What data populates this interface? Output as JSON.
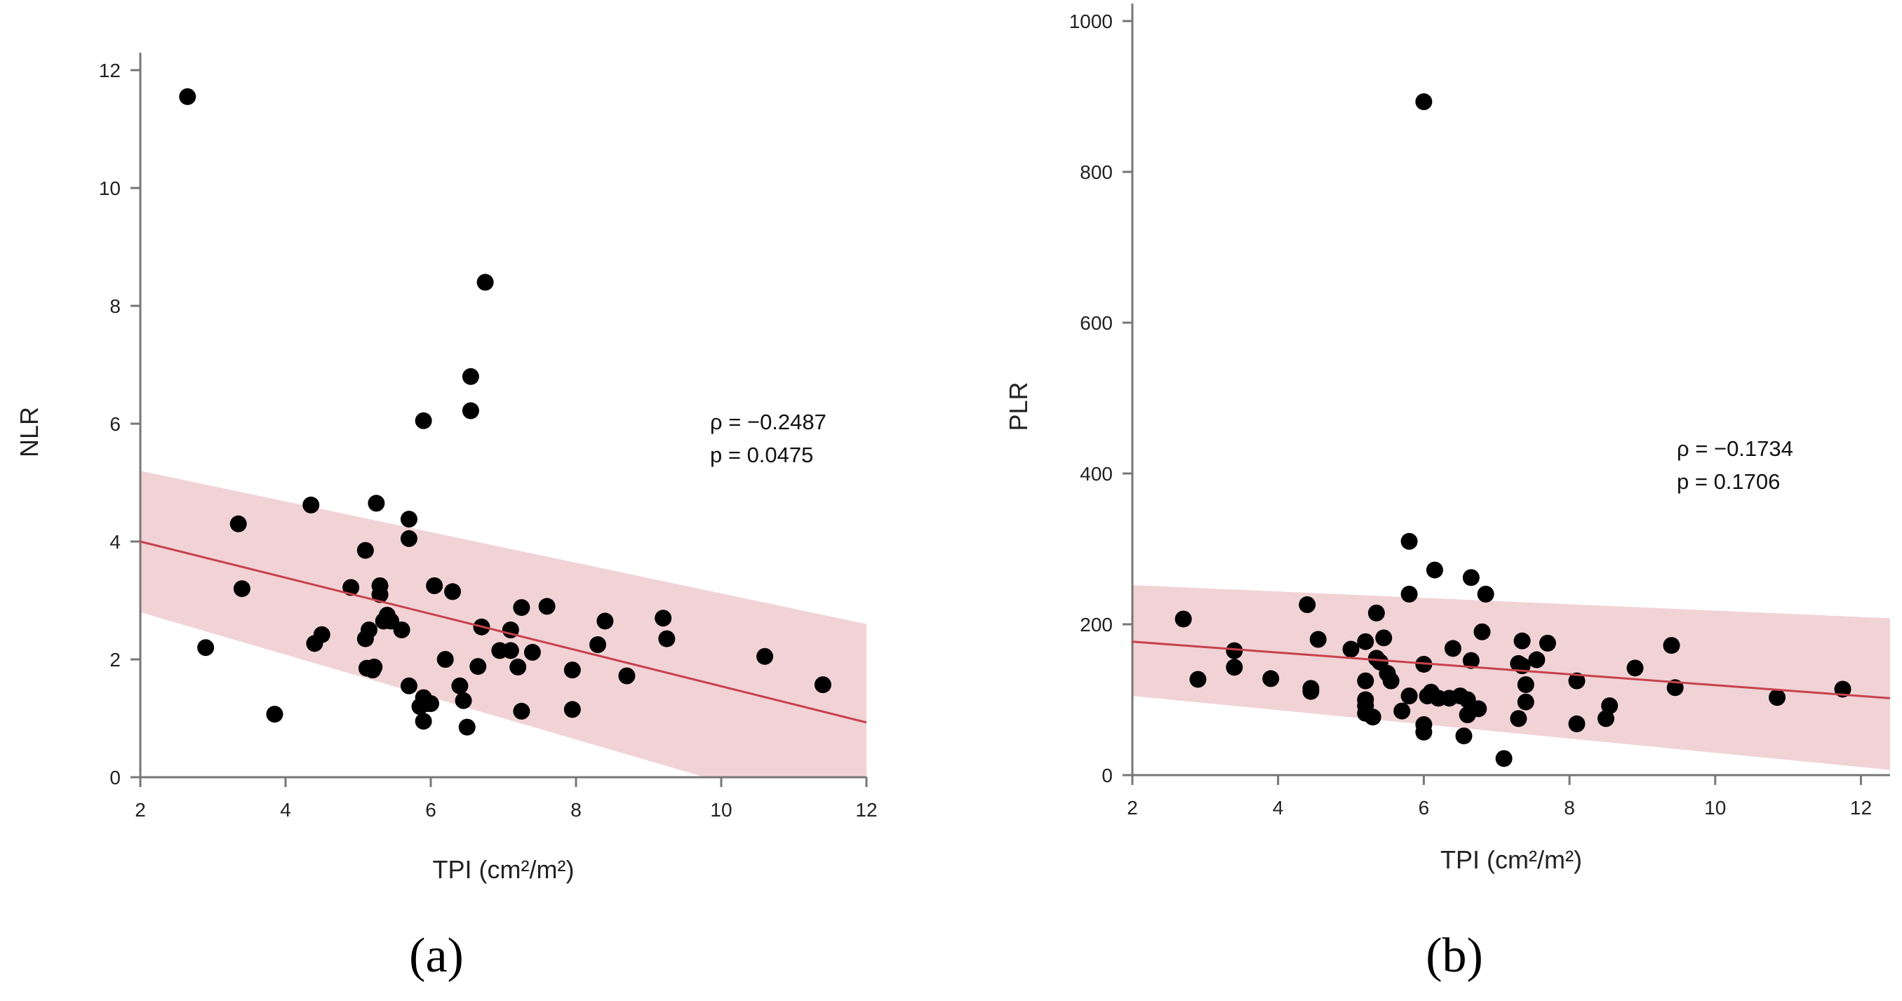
{
  "chart_data": [
    {
      "type": "scatter",
      "panel_label": "(a)",
      "xlabel": "TPI (cm²/m²)",
      "ylabel": "NLR",
      "xlim": [
        2,
        12
      ],
      "ylim": [
        0,
        12
      ],
      "xticks": [
        2,
        4,
        6,
        8,
        10,
        12
      ],
      "yticks": [
        0,
        2,
        4,
        6,
        8,
        10,
        12
      ],
      "annotation": [
        "ρ = −0.2487",
        "p = 0.0475"
      ],
      "annotation_position": "right-middle",
      "fit_line": {
        "x": [
          2,
          12
        ],
        "y": [
          4.0,
          0.93
        ]
      },
      "ci_band": {
        "x": [
          2,
          12
        ],
        "upper": [
          5.2,
          2.6
        ],
        "lower": [
          2.8,
          -0.8
        ]
      },
      "colors": {
        "points": "#000000",
        "fit": "#c7424b",
        "band": "#f1d3d6"
      },
      "points": [
        [
          2.65,
          11.55
        ],
        [
          2.9,
          2.2
        ],
        [
          3.35,
          4.3
        ],
        [
          3.4,
          3.2
        ],
        [
          3.85,
          1.07
        ],
        [
          4.35,
          4.62
        ],
        [
          4.4,
          2.27
        ],
        [
          4.5,
          2.42
        ],
        [
          4.9,
          3.22
        ],
        [
          5.1,
          3.85
        ],
        [
          5.1,
          2.35
        ],
        [
          5.12,
          1.85
        ],
        [
          5.15,
          2.5
        ],
        [
          5.2,
          1.82
        ],
        [
          5.22,
          1.87
        ],
        [
          5.25,
          4.65
        ],
        [
          5.3,
          3.25
        ],
        [
          5.3,
          3.1
        ],
        [
          5.35,
          2.65
        ],
        [
          5.4,
          2.75
        ],
        [
          5.45,
          2.65
        ],
        [
          5.6,
          2.5
        ],
        [
          5.7,
          4.38
        ],
        [
          5.7,
          4.05
        ],
        [
          5.7,
          1.55
        ],
        [
          5.85,
          1.2
        ],
        [
          5.9,
          6.05
        ],
        [
          5.9,
          1.35
        ],
        [
          5.9,
          0.95
        ],
        [
          5.95,
          1.25
        ],
        [
          6.0,
          1.25
        ],
        [
          6.05,
          3.25
        ],
        [
          6.2,
          2.0
        ],
        [
          6.3,
          3.15
        ],
        [
          6.4,
          1.55
        ],
        [
          6.45,
          1.3
        ],
        [
          6.5,
          0.85
        ],
        [
          6.55,
          6.8
        ],
        [
          6.55,
          6.22
        ],
        [
          6.65,
          1.88
        ],
        [
          6.7,
          2.55
        ],
        [
          6.75,
          8.4
        ],
        [
          6.95,
          2.15
        ],
        [
          7.1,
          2.5
        ],
        [
          7.1,
          2.15
        ],
        [
          7.2,
          1.87
        ],
        [
          7.25,
          2.88
        ],
        [
          7.25,
          1.12
        ],
        [
          7.4,
          2.12
        ],
        [
          7.6,
          2.9
        ],
        [
          7.95,
          1.82
        ],
        [
          7.95,
          1.15
        ],
        [
          8.3,
          2.25
        ],
        [
          8.4,
          2.65
        ],
        [
          8.7,
          1.72
        ],
        [
          9.2,
          2.7
        ],
        [
          9.25,
          2.35
        ],
        [
          10.6,
          2.05
        ],
        [
          11.4,
          1.57
        ]
      ]
    },
    {
      "type": "scatter",
      "panel_label": "(b)",
      "xlabel": "TPI (cm²/m²)",
      "ylabel": "PLR",
      "xlim": [
        2,
        12.4
      ],
      "ylim": [
        0,
        1000
      ],
      "xticks": [
        2,
        4,
        6,
        8,
        10,
        12
      ],
      "yticks": [
        0,
        200,
        400,
        600,
        800,
        1000
      ],
      "annotation": [
        "ρ = −0.1734",
        "p = 0.1706"
      ],
      "annotation_position": "right-middle",
      "fit_line": {
        "x": [
          2,
          12.4
        ],
        "y": [
          177,
          102
        ]
      },
      "ci_band": {
        "x": [
          2,
          12.4
        ],
        "upper": [
          252,
          208
        ],
        "lower": [
          105,
          7
        ]
      },
      "colors": {
        "points": "#000000",
        "fit": "#c7424b",
        "band": "#f1d3d6"
      },
      "points": [
        [
          2.7,
          207
        ],
        [
          2.9,
          127
        ],
        [
          3.4,
          165
        ],
        [
          3.4,
          143
        ],
        [
          3.9,
          128
        ],
        [
          4.4,
          226
        ],
        [
          4.45,
          115
        ],
        [
          4.45,
          111
        ],
        [
          4.55,
          180
        ],
        [
          5.0,
          167
        ],
        [
          5.2,
          177
        ],
        [
          5.2,
          125
        ],
        [
          5.2,
          100
        ],
        [
          5.2,
          92
        ],
        [
          5.2,
          82
        ],
        [
          5.3,
          77
        ],
        [
          5.35,
          215
        ],
        [
          5.35,
          155
        ],
        [
          5.4,
          150
        ],
        [
          5.45,
          182
        ],
        [
          5.5,
          135
        ],
        [
          5.55,
          125
        ],
        [
          5.7,
          85
        ],
        [
          5.8,
          105
        ],
        [
          5.8,
          240
        ],
        [
          5.8,
          310
        ],
        [
          6.0,
          893
        ],
        [
          6.0,
          147
        ],
        [
          6.0,
          67
        ],
        [
          6.0,
          57
        ],
        [
          6.05,
          105
        ],
        [
          6.1,
          110
        ],
        [
          6.15,
          272
        ],
        [
          6.2,
          102
        ],
        [
          6.35,
          102
        ],
        [
          6.4,
          168
        ],
        [
          6.5,
          105
        ],
        [
          6.55,
          52
        ],
        [
          6.6,
          80
        ],
        [
          6.6,
          100
        ],
        [
          6.65,
          262
        ],
        [
          6.65,
          152
        ],
        [
          6.75,
          88
        ],
        [
          6.8,
          190
        ],
        [
          6.85,
          240
        ],
        [
          7.1,
          22
        ],
        [
          7.3,
          148
        ],
        [
          7.3,
          75
        ],
        [
          7.35,
          145
        ],
        [
          7.35,
          178
        ],
        [
          7.4,
          120
        ],
        [
          7.4,
          97
        ],
        [
          7.55,
          153
        ],
        [
          7.7,
          175
        ],
        [
          8.1,
          125
        ],
        [
          8.1,
          68
        ],
        [
          8.5,
          75
        ],
        [
          8.55,
          92
        ],
        [
          8.9,
          142
        ],
        [
          9.4,
          172
        ],
        [
          9.45,
          116
        ],
        [
          10.85,
          103
        ],
        [
          11.75,
          114
        ]
      ]
    }
  ]
}
